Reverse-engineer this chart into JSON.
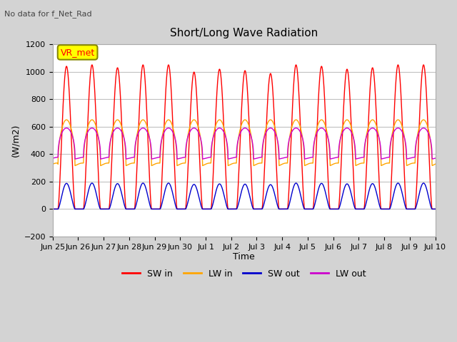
{
  "title": "Short/Long Wave Radiation",
  "subtitle": "No data for f_Net_Rad",
  "ylabel": "(W/m2)",
  "xlabel": "Time",
  "ylim": [
    -200,
    1200
  ],
  "yticks": [
    -200,
    0,
    200,
    400,
    600,
    800,
    1000,
    1200
  ],
  "xtick_labels": [
    "Jun 25",
    "Jun 26",
    "Jun 27",
    "Jun 28",
    "Jun 29",
    "Jun 30",
    "Jul 1",
    "Jul 2",
    "Jul 3",
    "Jul 4",
    "Jul 5",
    "Jul 6",
    "Jul 7",
    "Jul 8",
    "Jul 9",
    "Jul 10"
  ],
  "legend_entries": [
    "SW in",
    "LW in",
    "SW out",
    "LW out"
  ],
  "legend_colors": [
    "#ff0000",
    "#ffa500",
    "#0000cd",
    "#cc00cc"
  ],
  "bg_color": "#d3d3d3",
  "plot_bg_color": "#ffffff",
  "sw_in_peak": 1050,
  "n_days": 15,
  "vr_met_label": "VR_met",
  "grid_color": "#c0c0c0"
}
